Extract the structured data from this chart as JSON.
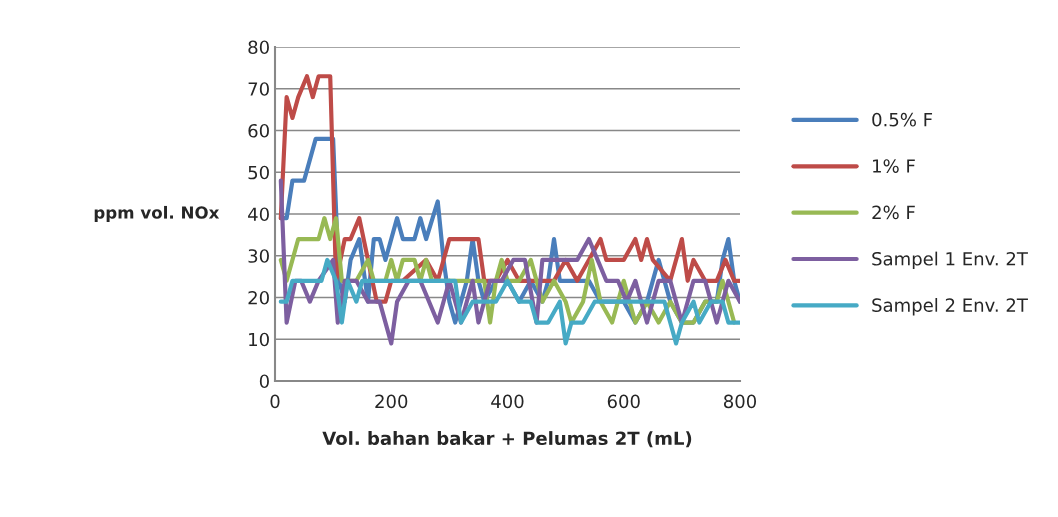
{
  "chart_data": {
    "type": "line",
    "xlabel": "Vol. bahan bakar + Pelumas 2T (mL)",
    "ylabel": "ppm vol. NOx",
    "xlim": [
      0,
      800
    ],
    "xticks": [
      0,
      200,
      400,
      600,
      800
    ],
    "ylim": [
      0,
      80
    ],
    "yticks": [
      0,
      10,
      20,
      30,
      40,
      50,
      60,
      70,
      80
    ],
    "grid": "y",
    "legend": "right",
    "marker": "none",
    "line_style": "solid",
    "series": [
      {
        "name": "0.5% F",
        "color": "#4a7ebb",
        "x": [
          10,
          20,
          30,
          50,
          70,
          90,
          100,
          110,
          120,
          130,
          145,
          160,
          170,
          180,
          190,
          210,
          220,
          240,
          250,
          260,
          280,
          290,
          300,
          310,
          320,
          330,
          340,
          350,
          360,
          380,
          400,
          420,
          440,
          460,
          470,
          480,
          490,
          500,
          520,
          540,
          560,
          580,
          600,
          620,
          640,
          660,
          680,
          700,
          720,
          740,
          760,
          770,
          780,
          790,
          800
        ],
        "values": [
          39,
          39,
          48,
          48,
          58,
          58,
          58,
          24,
          19,
          29,
          34,
          19,
          34,
          34,
          29,
          39,
          34,
          34,
          39,
          34,
          43,
          29,
          19,
          14,
          19,
          24,
          34,
          24,
          19,
          24,
          24,
          19,
          24,
          19,
          24,
          34,
          24,
          24,
          24,
          24,
          19,
          19,
          19,
          14,
          19,
          29,
          19,
          14,
          14,
          19,
          19,
          29,
          34,
          24,
          19
        ]
      },
      {
        "name": "1% F",
        "color": "#be4b48",
        "x": [
          10,
          20,
          30,
          40,
          55,
          65,
          75,
          95,
          105,
          120,
          130,
          145,
          160,
          175,
          190,
          200,
          220,
          260,
          280,
          300,
          320,
          350,
          360,
          380,
          400,
          420,
          440,
          460,
          480,
          500,
          520,
          540,
          560,
          570,
          600,
          620,
          630,
          640,
          650,
          680,
          700,
          710,
          720,
          740,
          760,
          775,
          790,
          800
        ],
        "values": [
          39,
          68,
          63,
          68,
          73,
          68,
          73,
          73,
          24,
          34,
          34,
          39,
          29,
          19,
          19,
          24,
          24,
          29,
          24,
          34,
          34,
          34,
          24,
          24,
          29,
          24,
          24,
          24,
          24,
          29,
          24,
          29,
          34,
          29,
          29,
          34,
          29,
          34,
          29,
          24,
          34,
          24,
          29,
          24,
          24,
          29,
          24,
          24
        ]
      },
      {
        "name": "2% F",
        "color": "#98b954",
        "x": [
          10,
          20,
          40,
          60,
          75,
          85,
          95,
          105,
          115,
          130,
          140,
          160,
          170,
          190,
          200,
          210,
          220,
          240,
          250,
          260,
          270,
          300,
          330,
          360,
          370,
          380,
          390,
          400,
          420,
          440,
          460,
          480,
          500,
          510,
          530,
          545,
          560,
          580,
          600,
          620,
          640,
          660,
          680,
          700,
          720,
          740,
          760,
          770,
          780,
          790
        ],
        "values": [
          29,
          24,
          34,
          34,
          34,
          39,
          34,
          39,
          24,
          24,
          24,
          29,
          24,
          24,
          29,
          24,
          29,
          29,
          24,
          29,
          24,
          24,
          24,
          24,
          14,
          24,
          29,
          24,
          24,
          29,
          19,
          24,
          19,
          14,
          19,
          29,
          19,
          14,
          24,
          14,
          19,
          14,
          19,
          14,
          14,
          19,
          19,
          24,
          19,
          14
        ]
      },
      {
        "name": "Sampel 1 Env. 2T",
        "color": "#7d5fa0",
        "x": [
          10,
          20,
          35,
          45,
          60,
          75,
          100,
          108,
          120,
          140,
          160,
          180,
          200,
          210,
          230,
          250,
          280,
          300,
          320,
          340,
          350,
          370,
          390,
          410,
          430,
          450,
          460,
          480,
          500,
          520,
          540,
          555,
          570,
          590,
          605,
          620,
          640,
          660,
          680,
          700,
          720,
          740,
          760,
          780,
          800
        ],
        "values": [
          48,
          14,
          24,
          24,
          19,
          24,
          29,
          14,
          24,
          24,
          19,
          19,
          9,
          19,
          24,
          24,
          14,
          24,
          14,
          24,
          14,
          24,
          24,
          29,
          29,
          14,
          29,
          29,
          29,
          29,
          34,
          29,
          24,
          24,
          19,
          24,
          14,
          24,
          24,
          14,
          24,
          24,
          14,
          24,
          19
        ]
      },
      {
        "name": "Sampel 2 Env. 2T",
        "color": "#46aac5",
        "x": [
          10,
          20,
          30,
          60,
          80,
          90,
          105,
          115,
          125,
          140,
          150,
          200,
          250,
          300,
          310,
          320,
          340,
          360,
          380,
          400,
          420,
          440,
          450,
          470,
          490,
          500,
          510,
          530,
          550,
          600,
          620,
          640,
          670,
          680,
          690,
          700,
          720,
          730,
          750,
          770,
          780,
          800
        ],
        "values": [
          19,
          19,
          24,
          24,
          24,
          29,
          24,
          14,
          24,
          19,
          24,
          24,
          24,
          24,
          24,
          14,
          19,
          19,
          19,
          24,
          19,
          19,
          14,
          14,
          19,
          9,
          14,
          14,
          19,
          19,
          19,
          19,
          19,
          14,
          9,
          14,
          19,
          14,
          19,
          19,
          14,
          14
        ]
      }
    ]
  }
}
